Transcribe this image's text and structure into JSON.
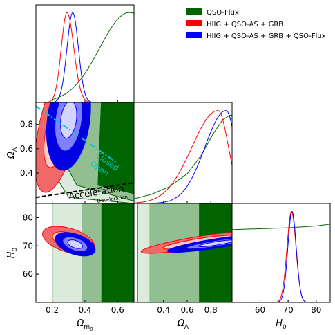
{
  "chart_data": {
    "type": "corner",
    "parameters": [
      {
        "key": "om",
        "label_main": "Ω",
        "label_sub": "m",
        "label_subsub": "0",
        "range": [
          0.1,
          0.7
        ],
        "ticks": [
          0.2,
          0.4,
          0.6
        ],
        "tick_labels": [
          "0.2",
          "0.4",
          "0.6"
        ]
      },
      {
        "key": "ol",
        "label_main": "Ω",
        "label_sub": "Λ",
        "range": [
          0.15,
          0.98
        ],
        "ticks": [
          0.4,
          0.6,
          0.8
        ],
        "tick_labels": [
          "0.4",
          "0.6",
          "0.8"
        ]
      },
      {
        "key": "h0",
        "label_main": "H",
        "label_sub": "0",
        "range": [
          50,
          85
        ],
        "ticks": [
          60,
          70,
          80
        ],
        "tick_labels": [
          "60",
          "70",
          "80"
        ]
      }
    ],
    "legend": {
      "placement": "top-right",
      "entries": [
        {
          "label": "QSO-Flux",
          "color": "#006400"
        },
        {
          "label": "HIIG + QSO-AS + GRB",
          "color": "#ff0000"
        },
        {
          "label": "HIIG + QSO-AS + GRB + QSO-Flux",
          "color": "#0000ff"
        }
      ]
    },
    "series": [
      {
        "name": "QSO-Flux",
        "color": "#006400",
        "fill_colors": [
          "#006400",
          "#92bf92",
          "#dceadc"
        ],
        "marginals": {
          "om": {
            "type": "rising",
            "start": 0.2,
            "peak": 0.67,
            "width": 0.18
          },
          "ol": {
            "points": [
              [
                0.15,
                0.05
              ],
              [
                0.3,
                0.1
              ],
              [
                0.45,
                0.18
              ],
              [
                0.6,
                0.32
              ],
              [
                0.72,
                0.52
              ],
              [
                0.82,
                0.75
              ],
              [
                0.9,
                0.9
              ],
              [
                0.96,
                0.95
              ],
              [
                0.98,
                0.95
              ]
            ]
          },
          "h0": {
            "points": [
              [
                50,
                0.8
              ],
              [
                60,
                0.81
              ],
              [
                70,
                0.82
              ],
              [
                80,
                0.84
              ],
              [
                85,
                0.86
              ]
            ]
          }
        },
        "om_h0_bands": [
          [
            0.2,
            0.26
          ],
          [
            0.26,
            0.38
          ],
          [
            0.38,
            0.5
          ],
          [
            0.5,
            0.7
          ]
        ],
        "om_ol_polys": [
          [
            [
              0.5,
              0.98
            ],
            [
              0.7,
              0.98
            ],
            [
              0.7,
              0.23
            ],
            [
              0.48,
              0.3
            ]
          ],
          [
            [
              0.37,
              0.98
            ],
            [
              0.5,
              0.98
            ],
            [
              0.48,
              0.3
            ],
            [
              0.7,
              0.23
            ],
            [
              0.7,
              0.17
            ],
            [
              0.35,
              0.3
            ],
            [
              0.29,
              0.45
            ]
          ],
          [
            [
              0.22,
              0.98
            ],
            [
              0.37,
              0.98
            ],
            [
              0.29,
              0.45
            ],
            [
              0.35,
              0.3
            ],
            [
              0.7,
              0.17
            ],
            [
              0.7,
              0.15
            ],
            [
              0.3,
              0.2
            ],
            [
              0.21,
              0.4
            ]
          ]
        ],
        "ol_h0_bands": [
          [
            0.18,
            0.28
          ],
          [
            0.28,
            0.7
          ],
          [
            0.7,
            0.98
          ]
        ]
      },
      {
        "name": "HIIG + QSO-AS + GRB",
        "color": "#ff0000",
        "fill_colors": [
          "#f06868",
          "#fbc8c8"
        ],
        "marginals": {
          "om": {
            "type": "gauss",
            "mean": 0.29,
            "sigma": 0.035,
            "skew": 0.2
          },
          "ol": {
            "type": "skewpeak",
            "peak": 0.86,
            "left": 0.22,
            "right": 0.09,
            "floor": 0.0
          },
          "h0": {
            "type": "gauss",
            "mean": 71.2,
            "sigma": 1.6
          }
        },
        "om_h0": {
          "mean": [
            0.3,
            72
          ],
          "sd": [
            0.065,
            2.0
          ],
          "rho": -0.45
        },
        "ol_h0": {
          "mean": [
            0.7,
            71.3
          ],
          "sd": [
            0.2,
            1.6
          ],
          "rho": 0.85
        },
        "om_ol": {
          "mean": [
            0.24,
            0.78
          ],
          "sd": [
            0.06,
            0.22
          ],
          "rho": 0.55
        }
      },
      {
        "name": "HIIG + QSO-AS + GRB + QSO-Flux",
        "color": "#0000ff",
        "fill_colors": [
          "#0000e0",
          "#7f7fff",
          "#d4d4ff"
        ],
        "marginals": {
          "om": {
            "type": "gauss",
            "mean": 0.325,
            "sigma": 0.035
          },
          "ol": {
            "type": "skewpeak",
            "peak": 0.93,
            "left": 0.18,
            "right": 0.08,
            "floor": 0.0
          },
          "h0": {
            "type": "gauss",
            "mean": 71.4,
            "sigma": 1.5
          }
        },
        "om_h0": {
          "mean": [
            0.34,
            70.6
          ],
          "sd": [
            0.05,
            1.7
          ],
          "rho": -0.45
        },
        "ol_h0": {
          "mean": [
            0.85,
            70.9
          ],
          "sd": [
            0.17,
            1.3
          ],
          "rho": 0.85
        },
        "om_ol": {
          "mean": [
            0.3,
            0.84
          ],
          "sd": [
            0.055,
            0.17
          ],
          "rho": 0.25
        }
      }
    ],
    "annotations": {
      "closed_open_line": {
        "color": "#00c8c8",
        "points": [
          [
            0.1,
            0.95
          ],
          [
            0.6,
            0.48
          ]
        ],
        "labels": [
          "Closed",
          "Open"
        ]
      },
      "accel_line": {
        "color": "#000000",
        "points": [
          [
            0.1,
            0.2
          ],
          [
            0.7,
            0.32
          ]
        ],
        "labels": [
          "Acceleration",
          "Deceleration"
        ]
      }
    }
  }
}
